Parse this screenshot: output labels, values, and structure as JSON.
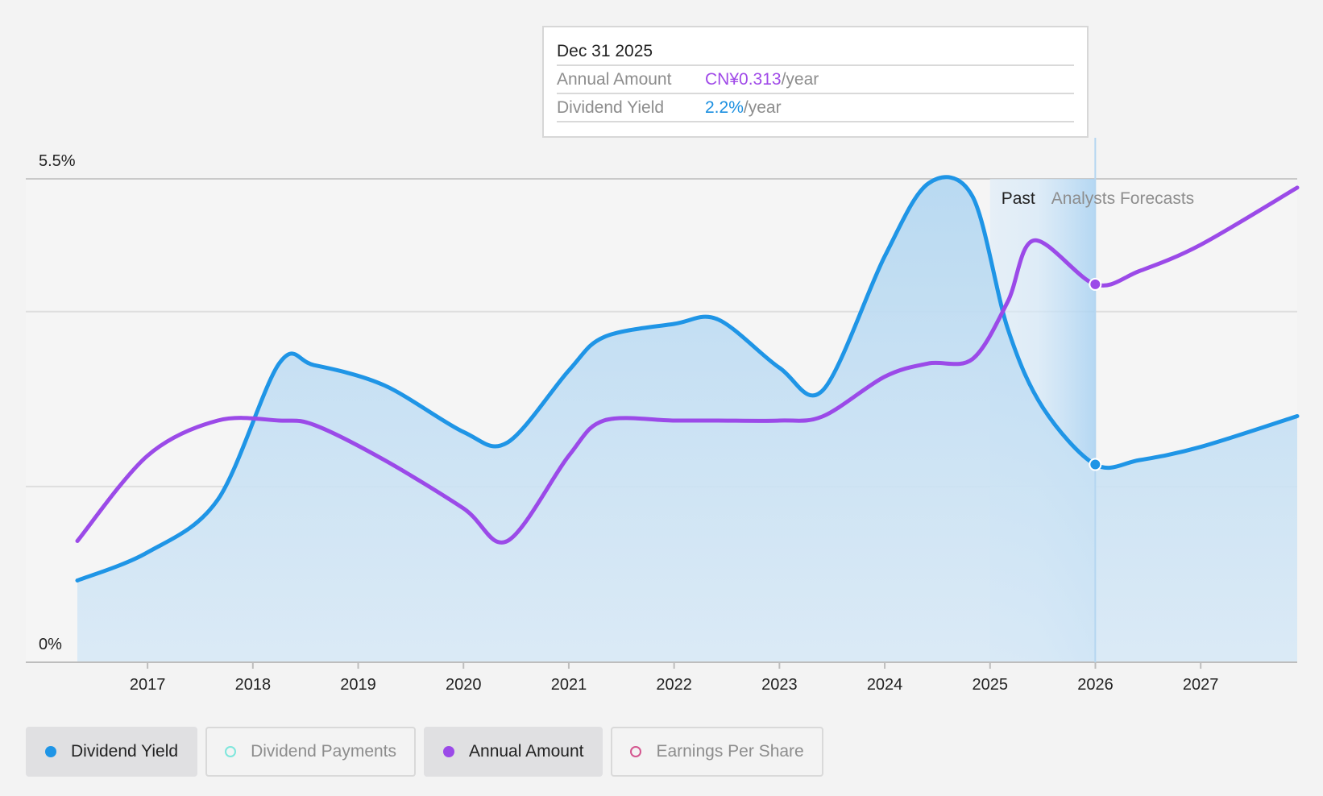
{
  "chart_data": {
    "type": "line",
    "y_tick_labels": [
      "5.5%",
      "0%"
    ],
    "ylim": [
      0,
      5.5
    ],
    "x_ticks": [
      "2017",
      "2018",
      "2019",
      "2020",
      "2021",
      "2022",
      "2023",
      "2024",
      "2025",
      "2026",
      "2027"
    ],
    "xlim": [
      "2016-05",
      "2027-12"
    ],
    "grid": true,
    "regions": {
      "past_label": "Past",
      "forecast_label": "Analysts Forecasts",
      "past_end": "2025-01",
      "forecast_start": "2025-12-31"
    },
    "series": [
      {
        "name": "Dividend Yield",
        "color": "#1f95e6",
        "fill": true,
        "x": [
          "2016-05",
          "2017-01",
          "2017-09",
          "2018-04",
          "2018-08",
          "2019-04",
          "2020-01",
          "2020-06",
          "2021-01",
          "2021-05",
          "2022-01",
          "2022-06",
          "2023-01",
          "2023-06",
          "2024-01",
          "2024-06",
          "2024-11",
          "2025-03",
          "2025-07",
          "2025-12-31",
          "2026-06",
          "2027-01",
          "2027-12"
        ],
        "values": [
          0.93,
          1.25,
          1.85,
          3.4,
          3.38,
          3.15,
          2.62,
          2.5,
          3.32,
          3.7,
          3.85,
          3.9,
          3.35,
          3.1,
          4.62,
          5.45,
          5.3,
          3.8,
          2.9,
          2.25,
          2.3,
          2.45,
          2.8
        ]
      },
      {
        "name": "Annual Amount",
        "color": "#9b4ae8",
        "fill": false,
        "x": [
          "2016-05",
          "2017-01",
          "2017-09",
          "2018-04",
          "2018-08",
          "2019-04",
          "2020-01",
          "2020-06",
          "2021-01",
          "2021-05",
          "2022-01",
          "2022-06",
          "2023-01",
          "2023-06",
          "2024-01",
          "2024-06",
          "2024-11",
          "2025-03",
          "2025-06",
          "2025-12-31",
          "2026-06",
          "2027-01",
          "2027-12"
        ],
        "values": [
          1.38,
          2.35,
          2.75,
          2.75,
          2.7,
          2.3,
          1.75,
          1.38,
          2.35,
          2.75,
          2.75,
          2.75,
          2.75,
          2.8,
          3.25,
          3.4,
          3.45,
          4.1,
          4.8,
          4.3,
          4.45,
          4.75,
          5.4
        ]
      }
    ],
    "tooltip": {
      "date": "Dec 31 2025",
      "rows": [
        {
          "key": "Annual Amount",
          "value": "CN¥0.313",
          "unit": "/year",
          "color": "purple"
        },
        {
          "key": "Dividend Yield",
          "value": "2.2%",
          "unit": "/year",
          "color": "blue"
        }
      ]
    },
    "legend": [
      {
        "label": "Dividend Yield",
        "active": true,
        "dot_color": "#1f95e6",
        "hollow": false
      },
      {
        "label": "Dividend Payments",
        "active": false,
        "dot_color": "#7ee6dc",
        "hollow": true
      },
      {
        "label": "Annual Amount",
        "active": true,
        "dot_color": "#9b4ae8",
        "hollow": false
      },
      {
        "label": "Earnings Per Share",
        "active": false,
        "dot_color": "#d4568f",
        "hollow": true
      }
    ]
  }
}
